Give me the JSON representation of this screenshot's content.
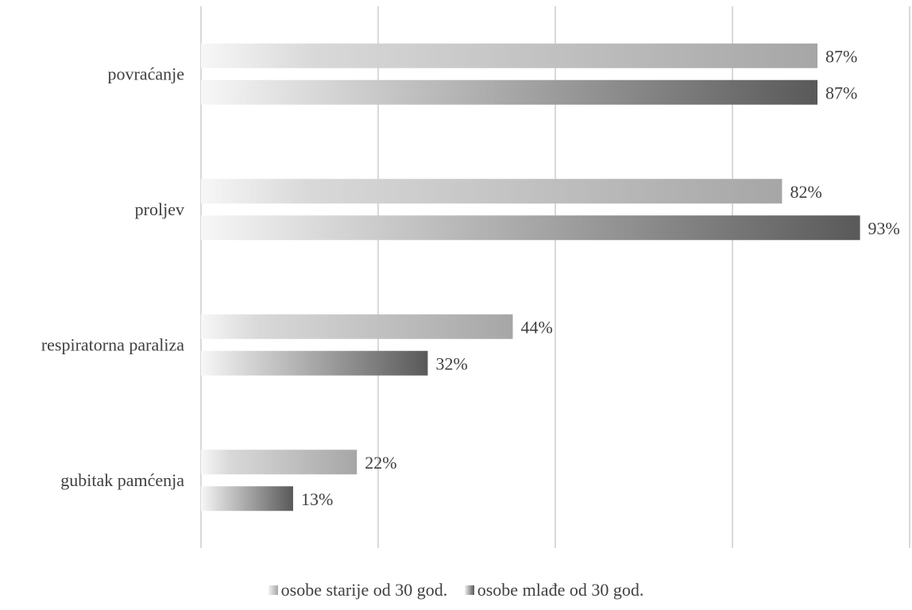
{
  "chart_data": {
    "type": "bar",
    "orientation": "horizontal",
    "categories": [
      "povraćanje",
      "proljev",
      "respiratorna paraliza",
      "gubitak pamćenja"
    ],
    "series": [
      {
        "name": "osobe starije od 30 god.",
        "values": [
          87,
          82,
          44,
          22
        ],
        "labels": [
          "87%",
          "82%",
          "44%",
          "22%"
        ],
        "color": "#a6a6a6"
      },
      {
        "name": "osobe mlađe od 30 god.",
        "values": [
          87,
          93,
          32,
          13
        ],
        "labels": [
          "87%",
          "93%",
          "32%",
          "13%"
        ],
        "color": "#595959"
      }
    ],
    "xlim": [
      0,
      100
    ],
    "grid": true,
    "legend_position": "bottom",
    "value_axis_labels": "hidden"
  }
}
